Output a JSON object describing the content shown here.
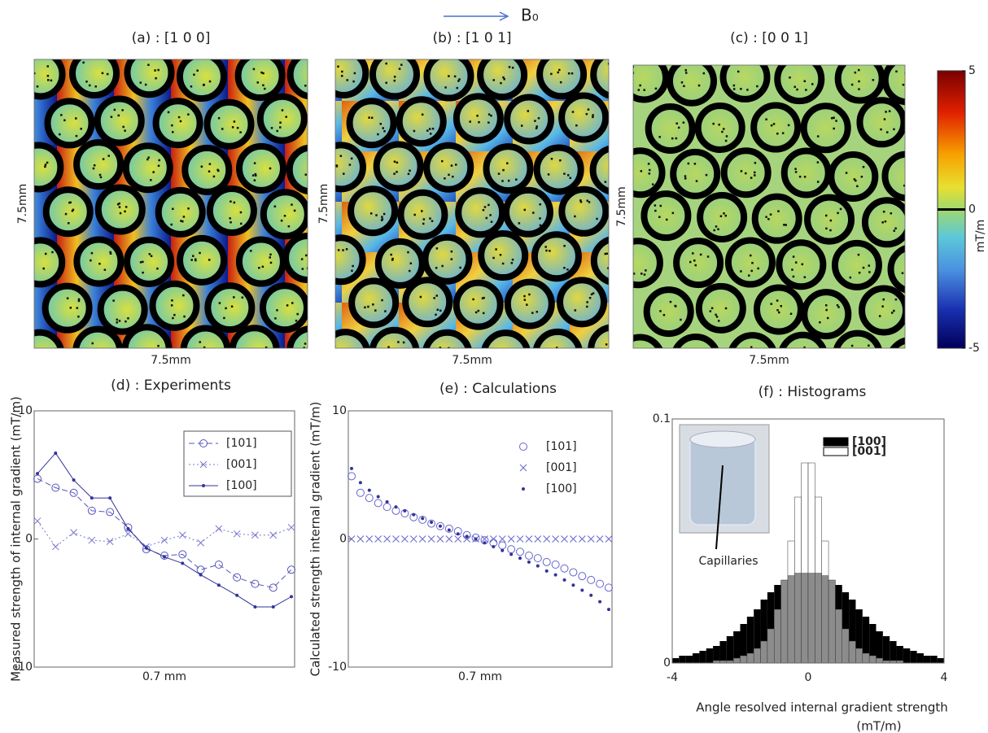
{
  "header": {
    "field_label": "B₀"
  },
  "panels": [
    {
      "title": "(a) : [1 0 0]",
      "xlabel": "7.5mm",
      "ylabel": "7.5mm"
    },
    {
      "title": "(b) : [1 0 1]",
      "xlabel": "7.5mm",
      "ylabel": "7.5mm"
    },
    {
      "title": "(c) : [0 0 1]",
      "xlabel": "7.5mm",
      "ylabel": "7.5mm"
    }
  ],
  "colorbar": {
    "label": "mT/m",
    "ylim": [
      -5,
      5
    ],
    "yticks": [
      5,
      0,
      -5
    ]
  },
  "chart_data": [
    {
      "type": "line",
      "title": "(d) : Experiments",
      "xlabel": "0.7 mm",
      "ylabel": "Measured strength of internal gradient (mT/m)",
      "ylim": [
        -10,
        10
      ],
      "yticks": [
        10,
        0,
        -10
      ],
      "legend": "upper right",
      "legend_frame": true,
      "series": [
        {
          "name": "[101]",
          "color": "#5555bb",
          "marker": "circle",
          "linestyle": "dashed",
          "values": [
            4.7,
            4.0,
            3.6,
            2.2,
            2.1,
            0.9,
            -0.8,
            -1.3,
            -1.2,
            -2.4,
            -2.0,
            -3.0,
            -3.5,
            -3.8,
            -2.4
          ]
        },
        {
          "name": "[001]",
          "color": "#7777cc",
          "marker": "x",
          "linestyle": "dotted",
          "values": [
            1.4,
            -0.6,
            0.5,
            -0.1,
            -0.2,
            0.4,
            -0.6,
            -0.1,
            0.3,
            -0.3,
            0.8,
            0.4,
            0.3,
            0.3,
            0.9
          ]
        },
        {
          "name": "[100]",
          "color": "#333399",
          "marker": "dot",
          "linestyle": "solid",
          "values": [
            5.1,
            6.7,
            4.6,
            3.2,
            3.2,
            0.8,
            -0.7,
            -1.4,
            -1.9,
            -2.8,
            -3.6,
            -4.4,
            -5.3,
            -5.3,
            -4.5
          ]
        }
      ]
    },
    {
      "type": "line",
      "title": "(e) : Calculations",
      "xlabel": "0.7 mm",
      "ylabel": "Calculated strength internal gradient (mT/m)",
      "ylim": [
        -10,
        10
      ],
      "yticks": [
        10,
        0,
        -10
      ],
      "legend": "upper right",
      "legend_frame": false,
      "series": [
        {
          "name": "[101]",
          "color": "#6666cc",
          "marker": "circle",
          "linestyle": "none",
          "values": [
            4.9,
            3.6,
            3.2,
            2.8,
            2.5,
            2.2,
            2.0,
            1.7,
            1.5,
            1.2,
            1.0,
            0.8,
            0.6,
            0.3,
            0.1,
            -0.1,
            -0.3,
            -0.5,
            -0.8,
            -1.0,
            -1.3,
            -1.5,
            -1.8,
            -2.0,
            -2.3,
            -2.6,
            -2.9,
            -3.2,
            -3.5,
            -3.8
          ]
        },
        {
          "name": "[001]",
          "color": "#6666cc",
          "marker": "x",
          "linestyle": "none",
          "values": [
            0,
            0,
            0,
            0,
            0,
            0,
            0,
            0,
            0,
            0,
            0,
            0,
            0,
            0,
            0,
            0,
            0,
            0,
            0,
            0,
            0,
            0,
            0,
            0,
            0,
            0,
            0,
            0,
            0,
            0
          ]
        },
        {
          "name": "[100]",
          "color": "#333399",
          "marker": "dot",
          "linestyle": "none",
          "values": [
            5.5,
            4.4,
            3.8,
            3.3,
            2.9,
            2.5,
            2.2,
            1.9,
            1.6,
            1.3,
            1.0,
            0.7,
            0.4,
            0.2,
            0.0,
            -0.3,
            -0.6,
            -0.9,
            -1.2,
            -1.5,
            -1.8,
            -2.1,
            -2.5,
            -2.8,
            -3.2,
            -3.6,
            -4.0,
            -4.4,
            -4.9,
            -5.5
          ]
        }
      ]
    },
    {
      "type": "histogram",
      "title": "(f) : Histograms",
      "xlabel": "Angle resolved internal gradient strength",
      "xlabel_unit": "(mT/m)",
      "annotation": "Capillaries",
      "xlim": [
        -4,
        4
      ],
      "xticks": [
        -4,
        0,
        4
      ],
      "ylim": [
        0,
        0.1
      ],
      "yticks": [
        0.1,
        0
      ],
      "legend": "upper right",
      "bins": [
        -4,
        -3.8,
        -3.6,
        -3.4,
        -3.2,
        -3,
        -2.8,
        -2.6,
        -2.4,
        -2.2,
        -2,
        -1.8,
        -1.6,
        -1.4,
        -1.2,
        -1,
        -0.8,
        -0.6,
        -0.4,
        -0.2,
        0,
        0.2,
        0.4,
        0.6,
        0.8,
        1,
        1.2,
        1.4,
        1.6,
        1.8,
        2,
        2.2,
        2.4,
        2.6,
        2.8,
        3,
        3.2,
        3.4,
        3.6,
        3.8,
        4
      ],
      "series": [
        {
          "name": "[100]",
          "color": "#000000",
          "values": [
            0.002,
            0.003,
            0.003,
            0.004,
            0.005,
            0.006,
            0.007,
            0.009,
            0.011,
            0.013,
            0.016,
            0.019,
            0.022,
            0.026,
            0.029,
            0.032,
            0.034,
            0.036,
            0.037,
            0.037,
            0.037,
            0.037,
            0.036,
            0.034,
            0.032,
            0.029,
            0.026,
            0.022,
            0.019,
            0.016,
            0.013,
            0.011,
            0.009,
            0.007,
            0.006,
            0.005,
            0.004,
            0.003,
            0.003,
            0.002
          ]
        },
        {
          "name": "[001]",
          "color": "#ffffff",
          "values": [
            0,
            0,
            0,
            0,
            0,
            0,
            0.001,
            0.001,
            0.001,
            0.002,
            0.003,
            0.004,
            0.006,
            0.009,
            0.014,
            0.022,
            0.034,
            0.05,
            0.068,
            0.082,
            0.082,
            0.068,
            0.05,
            0.034,
            0.022,
            0.014,
            0.009,
            0.006,
            0.004,
            0.003,
            0.002,
            0.001,
            0.001,
            0.001,
            0,
            0,
            0,
            0,
            0,
            0
          ]
        }
      ]
    }
  ]
}
